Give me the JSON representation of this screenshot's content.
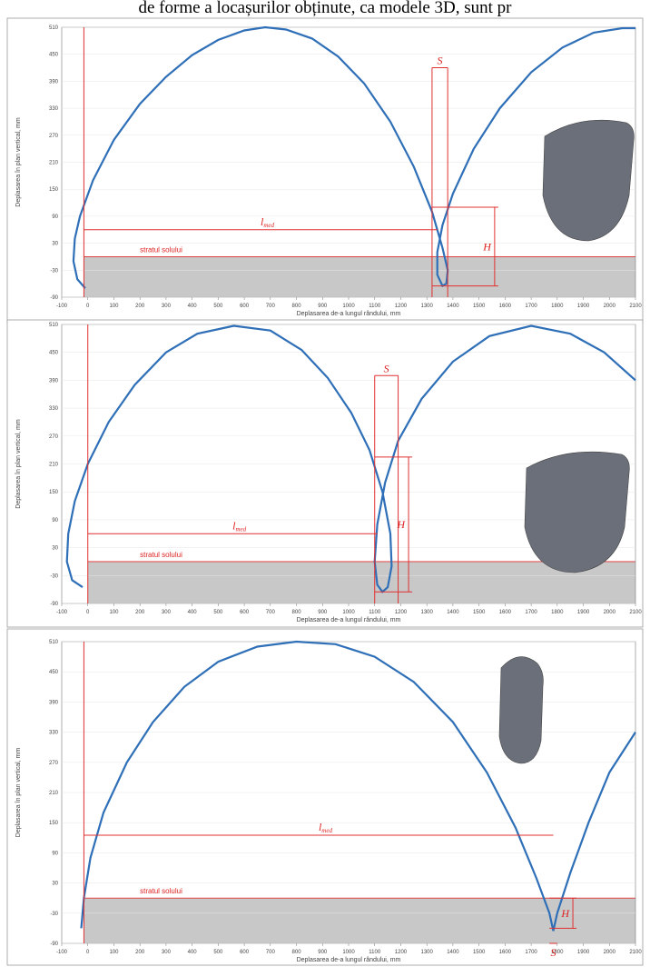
{
  "header_text": "de forme a locașurilor obținute, ca modele 3D, sunt pr",
  "chart_data": [
    {
      "type": "line",
      "x_label": "Deplasarea de-a lungul rândului, mm",
      "y_label": "Deplasarea în plan vertical, mm",
      "xlim": [
        -100,
        2100
      ],
      "ylim": [
        -90,
        510
      ],
      "xticks": [
        -100,
        0,
        100,
        200,
        300,
        400,
        500,
        600,
        700,
        800,
        900,
        1000,
        1100,
        1200,
        1300,
        1400,
        1500,
        1600,
        1700,
        1800,
        1900,
        2000,
        2100
      ],
      "yticks": [
        510,
        450,
        390,
        330,
        270,
        210,
        150,
        90,
        30,
        -30,
        -90
      ],
      "x": [
        -10,
        -40,
        -55,
        -50,
        -30,
        20,
        100,
        200,
        300,
        400,
        500,
        600,
        680,
        760,
        860,
        960,
        1060,
        1160,
        1250,
        1320,
        1360,
        1380,
        1375,
        1360,
        1340,
        1340,
        1360,
        1400,
        1480,
        1580,
        1700,
        1820,
        1940,
        2050,
        2100
      ],
      "series": [
        {
          "color": "#2e6fb7",
          "values": [
            -70,
            -50,
            -10,
            40,
            90,
            170,
            260,
            340,
            400,
            448,
            482,
            503,
            510,
            505,
            485,
            445,
            385,
            300,
            200,
            100,
            20,
            -30,
            -60,
            -65,
            -40,
            10,
            70,
            140,
            240,
            330,
            410,
            465,
            498,
            508,
            508
          ]
        }
      ],
      "soil": {
        "label": "stratul solului",
        "level": 0,
        "from": -15
      },
      "s": {
        "label": "S",
        "x": [
          1320,
          1380
        ],
        "y": 420
      },
      "h": {
        "label": "H",
        "x": 1560,
        "y": [
          -65,
          110
        ]
      },
      "l": {
        "label": "l",
        "sub": "med",
        "x": [
          -15,
          1340
        ],
        "y": 60
      }
    },
    {
      "type": "line",
      "x_label": "Deplasarea de-a lungul rândului, mm",
      "y_label": "Deplasarea în plan vertical, mm",
      "xlim": [
        -100,
        2100
      ],
      "ylim": [
        -90,
        510
      ],
      "xticks": [
        -100,
        0,
        100,
        200,
        300,
        400,
        500,
        600,
        700,
        800,
        900,
        1000,
        1100,
        1200,
        1300,
        1400,
        1500,
        1600,
        1700,
        1800,
        1900,
        2000,
        2100
      ],
      "yticks": [
        510,
        450,
        390,
        330,
        270,
        210,
        150,
        90,
        30,
        -30,
        -90
      ],
      "x": [
        -20,
        -60,
        -80,
        -75,
        -50,
        0,
        80,
        180,
        300,
        420,
        560,
        700,
        820,
        920,
        1010,
        1080,
        1130,
        1160,
        1165,
        1150,
        1130,
        1110,
        1100,
        1110,
        1140,
        1190,
        1280,
        1400,
        1540,
        1700,
        1850,
        1980,
        2100
      ],
      "series": [
        {
          "color": "#2e6fb7",
          "values": [
            -55,
            -40,
            0,
            60,
            130,
            210,
            300,
            380,
            450,
            490,
            507,
            497,
            455,
            395,
            320,
            240,
            150,
            60,
            -10,
            -55,
            -65,
            -50,
            0,
            80,
            170,
            260,
            350,
            430,
            485,
            507,
            490,
            450,
            390
          ]
        }
      ],
      "soil": {
        "label": "stratul solului",
        "level": 0,
        "from": 0
      },
      "s": {
        "label": "S",
        "x": [
          1100,
          1190
        ],
        "y": 400
      },
      "h": {
        "label": "H",
        "x": 1230,
        "y": [
          -65,
          225
        ]
      },
      "l": {
        "label": "l",
        "sub": "med",
        "x": [
          0,
          1110
        ],
        "y": 60
      }
    },
    {
      "type": "line",
      "x_label": "Deplasarea de-a lungul rândului, mm",
      "y_label": "Deplasarea în plan vertical, mm",
      "xlim": [
        -100,
        2100
      ],
      "ylim": [
        -90,
        510
      ],
      "xticks": [
        -100,
        0,
        100,
        200,
        300,
        400,
        500,
        600,
        700,
        800,
        900,
        1000,
        1100,
        1200,
        1300,
        1400,
        1500,
        1600,
        1700,
        1800,
        1900,
        2000,
        2100
      ],
      "yticks": [
        510,
        450,
        390,
        330,
        270,
        210,
        150,
        90,
        30,
        -30,
        -90
      ],
      "x": [
        -25,
        -15,
        10,
        60,
        150,
        250,
        370,
        500,
        650,
        800,
        950,
        1100,
        1250,
        1400,
        1530,
        1640,
        1720,
        1770,
        1785,
        1800,
        1850,
        1920,
        2000,
        2100
      ],
      "series": [
        {
          "color": "#2e6fb7",
          "values": [
            -60,
            0,
            80,
            170,
            270,
            350,
            420,
            470,
            500,
            510,
            505,
            480,
            430,
            350,
            250,
            140,
            40,
            -30,
            -65,
            -30,
            50,
            150,
            250,
            330
          ]
        }
      ],
      "soil": {
        "label": "stratul solului",
        "level": 0,
        "from": -15
      },
      "s": {
        "label": "S",
        "x": [
          1770,
          1800
        ],
        "y": -90
      },
      "h": {
        "label": "H",
        "x": 1860,
        "y": [
          -60,
          0
        ]
      },
      "l": {
        "label": "l",
        "sub": "med",
        "x": [
          -15,
          1785
        ],
        "y": 125
      }
    }
  ]
}
